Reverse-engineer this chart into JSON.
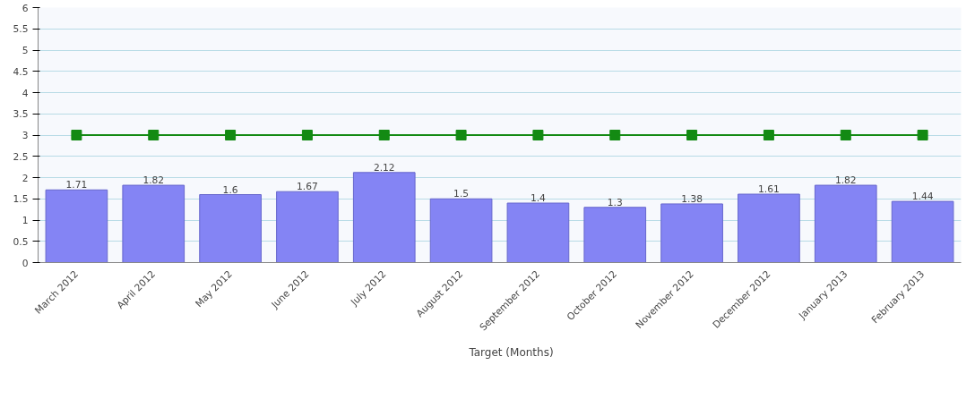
{
  "chart_data": {
    "type": "bar",
    "categories": [
      "March 2012",
      "April 2012",
      "May 2012",
      "June 2012",
      "July 2012",
      "August 2012",
      "September 2012",
      "October 2012",
      "November 2012",
      "December 2012",
      "January 2013",
      "February 2013"
    ],
    "series": [
      {
        "color": "#8484f4",
        "values": [
          1.71,
          1.82,
          1.6,
          1.67,
          2.12,
          1.5,
          1.4,
          1.3,
          1.38,
          1.61,
          1.82,
          1.44
        ],
        "value_labels": [
          "1.71",
          "1.82",
          "1.6",
          "1.67",
          "2.12",
          "1.5",
          "1.4",
          "1.3",
          "1.38",
          "1.61",
          "1.82",
          "1.44"
        ]
      },
      {
        "type": "line",
        "name": "Target (Months)",
        "color": "#138a13",
        "marker": "square",
        "values": [
          3,
          3,
          3,
          3,
          3,
          3,
          3,
          3,
          3,
          3,
          3,
          3
        ]
      }
    ],
    "ylim": [
      0,
      6
    ],
    "yticks": [
      0,
      0.5,
      1,
      1.5,
      2,
      2.5,
      3,
      3.5,
      4,
      4.5,
      5,
      5.5,
      6
    ],
    "grid": "y",
    "legend": "bottom"
  }
}
